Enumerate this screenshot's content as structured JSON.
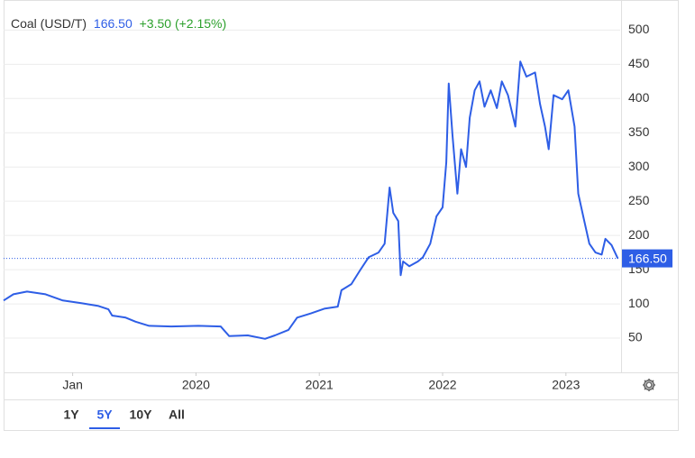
{
  "chart_data": {
    "type": "line",
    "title": "Coal (USD/T)",
    "last_value": {
      "value": 166.5,
      "label": "166.50"
    },
    "change": "+3.50 (+2.15%)",
    "color": "#2e5ee6",
    "x": [
      2018.44,
      2018.52,
      2018.63,
      2018.78,
      2018.92,
      2019.07,
      2019.21,
      2019.29,
      2019.32,
      2019.43,
      2019.51,
      2019.62,
      2019.8,
      2020.02,
      2020.2,
      2020.27,
      2020.42,
      2020.56,
      2020.64,
      2020.75,
      2020.82,
      2020.93,
      2021.04,
      2021.15,
      2021.18,
      2021.26,
      2021.33,
      2021.4,
      2021.48,
      2021.53,
      2021.57,
      2021.6,
      2021.64,
      2021.66,
      2021.68,
      2021.73,
      2021.8,
      2021.84,
      2021.9,
      2021.95,
      2022.0,
      2022.03,
      2022.05,
      2022.08,
      2022.12,
      2022.15,
      2022.19,
      2022.22,
      2022.26,
      2022.3,
      2022.34,
      2022.39,
      2022.44,
      2022.48,
      2022.53,
      2022.59,
      2022.63,
      2022.68,
      2022.75,
      2022.79,
      2022.83,
      2022.86,
      2022.9,
      2022.97,
      2023.02,
      2023.07,
      2023.1,
      2023.14,
      2023.19,
      2023.24,
      2023.29,
      2023.32,
      2023.37,
      2023.42
    ],
    "values": [
      105,
      114,
      118,
      114,
      105,
      101,
      97,
      92,
      83,
      80,
      74,
      68,
      67,
      68,
      67,
      53,
      54,
      49,
      54,
      62,
      80,
      86,
      93,
      96,
      120,
      129,
      149,
      168,
      175,
      188,
      270,
      233,
      221,
      142,
      162,
      155,
      162,
      168,
      188,
      228,
      241,
      307,
      422,
      346,
      261,
      326,
      300,
      372,
      412,
      425,
      388,
      412,
      386,
      425,
      405,
      359,
      454,
      432,
      438,
      392,
      359,
      326,
      405,
      399,
      412,
      359,
      261,
      228,
      188,
      175,
      172,
      195,
      186,
      166.5
    ],
    "xlim": [
      2018.44,
      2023.44
    ],
    "xticks": [
      {
        "value": 2019,
        "label": "Jan"
      },
      2020,
      2021,
      2022,
      2023
    ],
    "ylim": [
      0,
      540
    ],
    "yticks": [
      50,
      100,
      150,
      200,
      250,
      300,
      350,
      400,
      450,
      500
    ],
    "grid": true,
    "range_buttons": [
      "1Y",
      "5Y",
      "10Y",
      "All"
    ],
    "active_range": 1
  }
}
